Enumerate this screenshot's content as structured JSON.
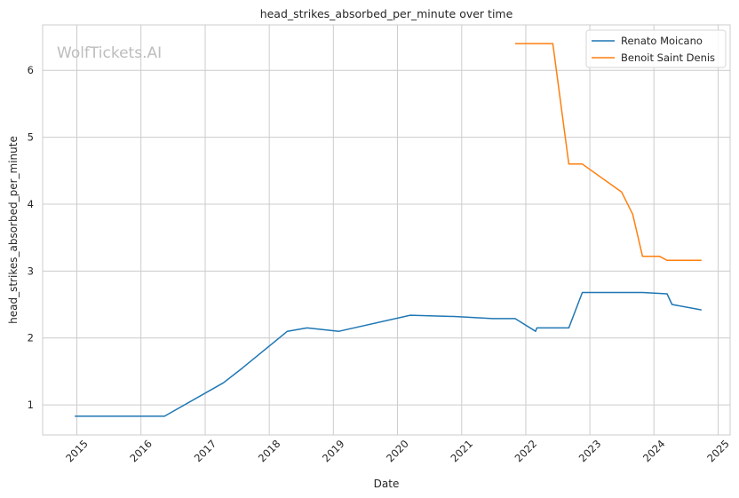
{
  "watermark": "WolfTickets.AI",
  "chart_data": {
    "type": "line",
    "title": "head_strikes_absorbed_per_minute over time",
    "xlabel": "Date",
    "ylabel": "head_strikes_absorbed_per_minute",
    "x_ticks": [
      "2015",
      "2016",
      "2017",
      "2018",
      "2019",
      "2020",
      "2021",
      "2022",
      "2023",
      "2024",
      "2025"
    ],
    "y_ticks": [
      "1",
      "2",
      "3",
      "4",
      "5",
      "6"
    ],
    "xlim": [
      "2014-06-20",
      "2025-03-10"
    ],
    "ylim": [
      0.55,
      6.68
    ],
    "grid": true,
    "legend_position": "top-right",
    "series": [
      {
        "name": "Renato Moicano",
        "color": "#1f77b4",
        "points": [
          [
            "2014-12-20",
            0.83
          ],
          [
            "2016-05-14",
            0.83
          ],
          [
            "2017-04-15",
            1.33
          ],
          [
            "2017-08-01",
            1.55
          ],
          [
            "2018-04-14",
            2.1
          ],
          [
            "2018-08-04",
            2.15
          ],
          [
            "2019-02-02",
            2.1
          ],
          [
            "2020-03-14",
            2.34
          ],
          [
            "2020-12-01",
            2.32
          ],
          [
            "2021-06-26",
            2.29
          ],
          [
            "2021-11-01",
            2.29
          ],
          [
            "2022-02-26",
            2.1
          ],
          [
            "2022-03-05",
            2.15
          ],
          [
            "2022-09-03",
            2.15
          ],
          [
            "2022-11-19",
            2.68
          ],
          [
            "2023-10-28",
            2.68
          ],
          [
            "2024-03-16",
            2.66
          ],
          [
            "2024-04-13",
            2.5
          ],
          [
            "2024-09-28",
            2.42
          ]
        ]
      },
      {
        "name": "Benoit Saint Denis",
        "color": "#ff7f0e",
        "points": [
          [
            "2021-11-01",
            6.4
          ],
          [
            "2022-06-04",
            6.4
          ],
          [
            "2022-09-03",
            4.6
          ],
          [
            "2022-11-19",
            4.6
          ],
          [
            "2023-07-01",
            4.18
          ],
          [
            "2023-09-02",
            3.85
          ],
          [
            "2023-10-28",
            3.22
          ],
          [
            "2024-02-03",
            3.22
          ],
          [
            "2024-03-16",
            3.16
          ],
          [
            "2024-09-28",
            3.16
          ]
        ]
      }
    ]
  }
}
